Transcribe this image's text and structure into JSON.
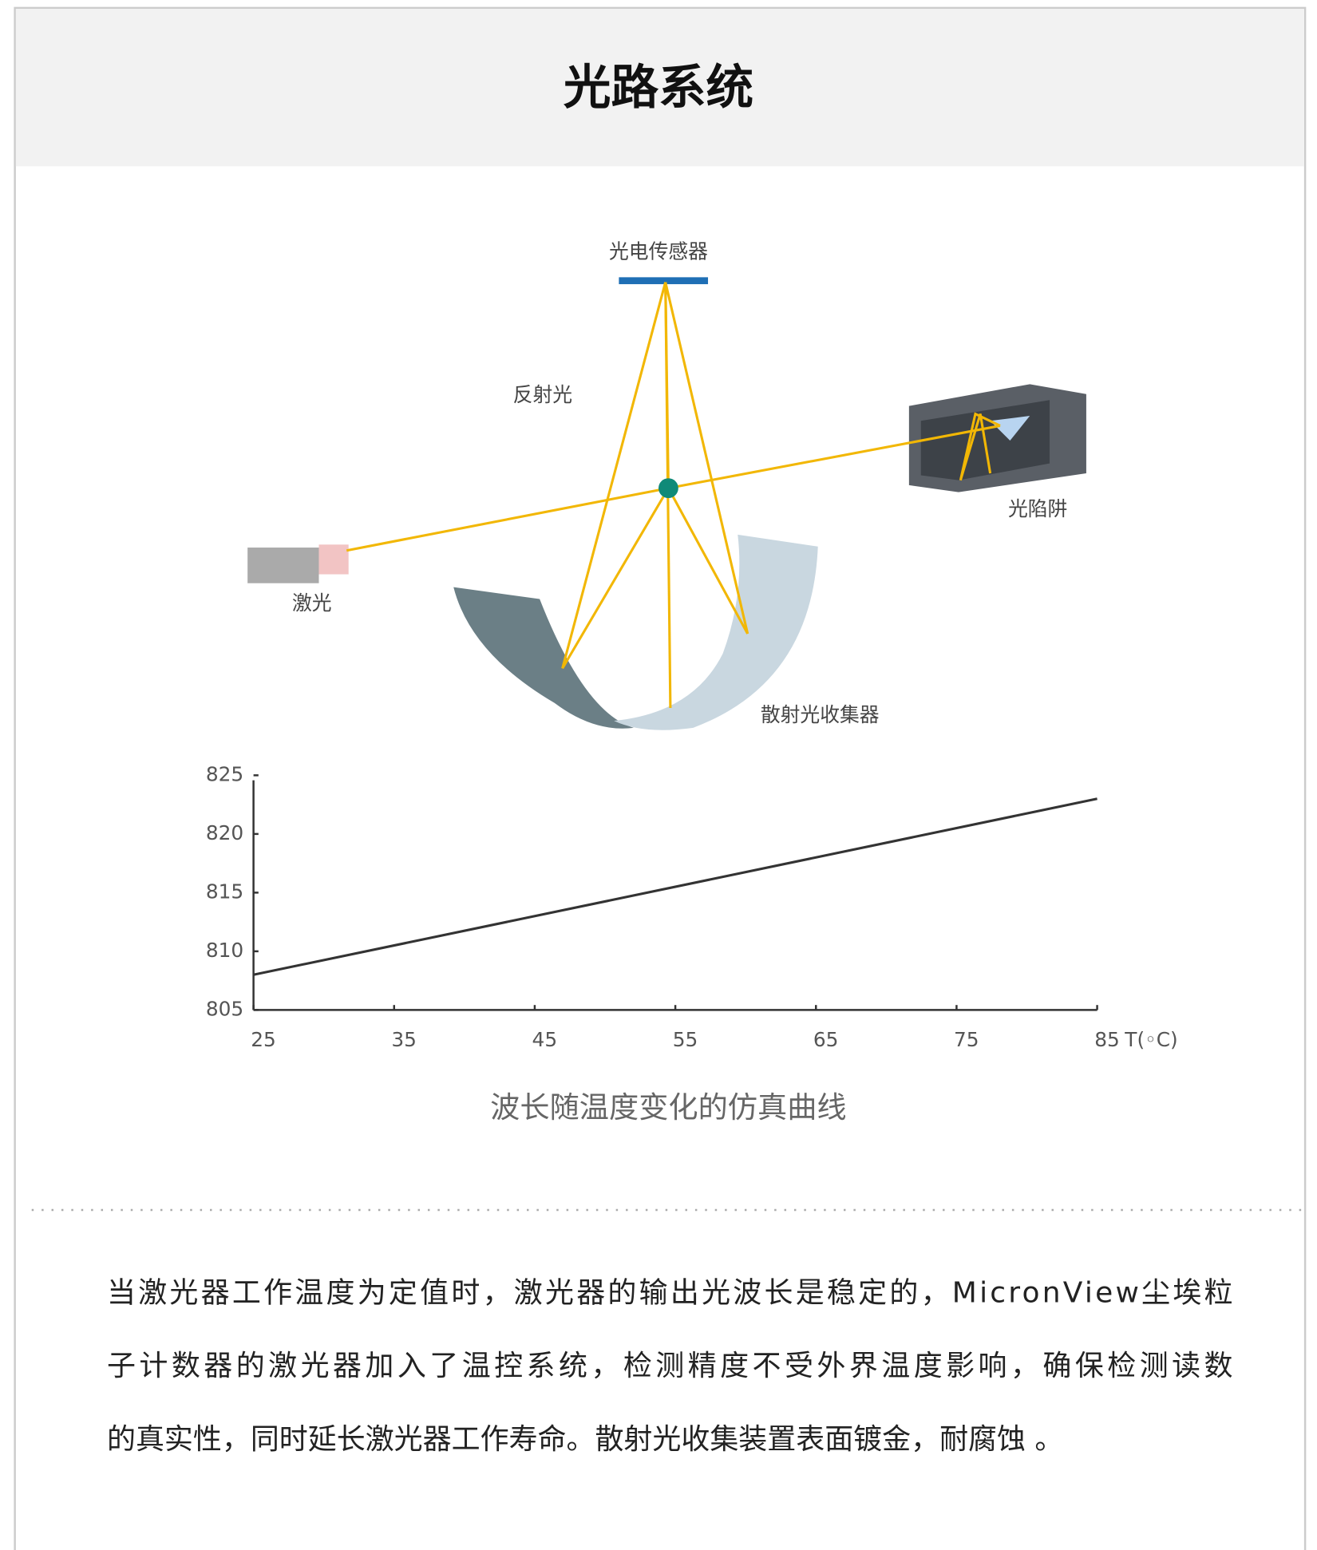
{
  "header": {
    "title": "光路系统"
  },
  "diagram": {
    "labels": {
      "sensor": "光电传感器",
      "reflected": "反射光",
      "trap": "光陷阱",
      "laser": "激光",
      "collector": "散射光收集器"
    }
  },
  "chart_data": {
    "type": "line",
    "x": [
      25,
      85
    ],
    "series": [
      {
        "color": "#333333",
        "values": [
          808,
          823
        ]
      }
    ],
    "xlim": [
      25,
      85
    ],
    "xticks": [
      25,
      35,
      45,
      55,
      65,
      75,
      85
    ],
    "x_label": "T(◦C)",
    "ylim": [
      805,
      825
    ],
    "yticks": [
      805,
      810,
      815,
      820,
      825
    ],
    "caption": "波长随温度变化的仿真曲线"
  },
  "paragraph": {
    "lines": [
      "当激光器工作温度为定值时，激光器的输出光波长是稳定的，MicronView尘埃粒",
      "子计数器的激光器加入了温控系统，检测精度不受外界温度影响，确保检测读数",
      "的真实性，同时延长激光器工作寿命。散射光收集装置表面镀金，耐腐蚀 。"
    ]
  }
}
